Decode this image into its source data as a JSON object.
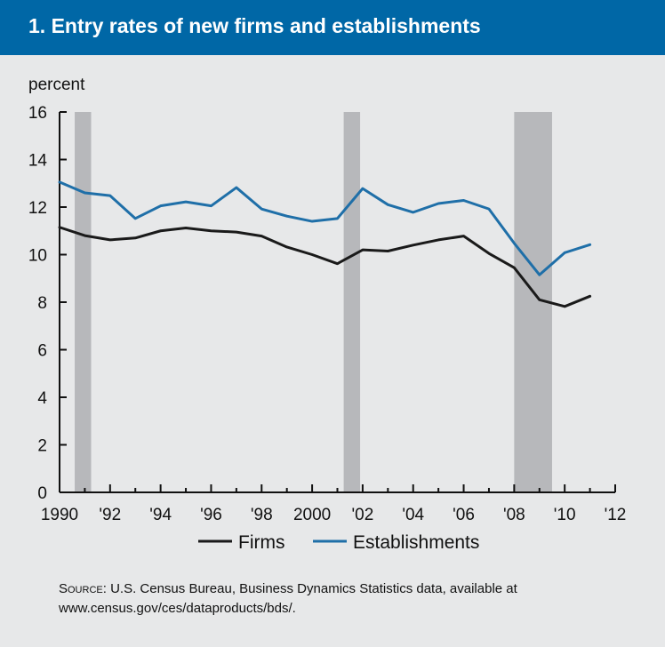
{
  "title": "1. Entry rates of new firms and establishments",
  "colors": {
    "panel_background": "#e7e8e9",
    "title_bar": "#0067a6",
    "recession_band": "#b7b8bb",
    "firms": "#1a1a1a",
    "establishments": "#1f6fa8"
  },
  "chart_data": {
    "type": "line",
    "ylabel": "percent",
    "xlabel": "",
    "xlim": [
      1990,
      2012
    ],
    "ylim": [
      0,
      16
    ],
    "x_ticks": [
      1990,
      1992,
      1994,
      1996,
      1998,
      2000,
      2002,
      2004,
      2006,
      2008,
      2010,
      2012
    ],
    "x_tick_labels": [
      "1990",
      "'92",
      "'94",
      "'96",
      "'98",
      "2000",
      "'02",
      "'04",
      "'06",
      "'08",
      "'10",
      "'12"
    ],
    "y_ticks": [
      0,
      2,
      4,
      6,
      8,
      10,
      12,
      14,
      16
    ],
    "y_tick_labels": [
      "0",
      "2",
      "4",
      "6",
      "8",
      "10",
      "12",
      "14",
      "16"
    ],
    "grid": false,
    "legend_position": "bottom",
    "recession_bands": [
      {
        "start": 1990.6,
        "end": 1991.25
      },
      {
        "start": 2001.25,
        "end": 2001.9
      },
      {
        "start": 2008.0,
        "end": 2009.5
      }
    ],
    "x": [
      1990,
      1991,
      1992,
      1993,
      1994,
      1995,
      1996,
      1997,
      1998,
      1999,
      2000,
      2001,
      2002,
      2003,
      2004,
      2005,
      2006,
      2007,
      2008,
      2009,
      2010,
      2011
    ],
    "series": [
      {
        "name": "Firms",
        "color": "#1a1a1a",
        "values": [
          11.15,
          10.8,
          10.62,
          10.7,
          11.0,
          11.12,
          11.0,
          10.95,
          10.78,
          10.32,
          10.0,
          9.62,
          10.2,
          10.15,
          10.4,
          10.62,
          10.78,
          10.05,
          9.45,
          8.1,
          7.82,
          8.25
        ]
      },
      {
        "name": "Establishments",
        "color": "#1f6fa8",
        "values": [
          13.05,
          12.6,
          12.48,
          11.52,
          12.05,
          12.22,
          12.05,
          12.82,
          11.92,
          11.62,
          11.4,
          11.52,
          12.78,
          12.1,
          11.78,
          12.15,
          12.28,
          11.92,
          10.48,
          9.15,
          10.08,
          10.42
        ]
      }
    ]
  },
  "source": {
    "label": "Source:",
    "text": "U.S. Census Bureau, Business Dynamics Statistics data, available at www.census.gov/ces/dataproducts/bds/."
  }
}
